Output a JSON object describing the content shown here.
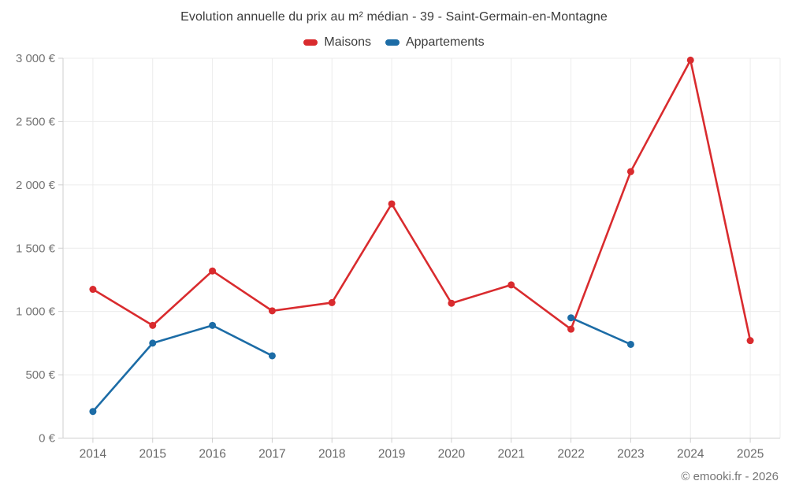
{
  "chart": {
    "title": "Evolution annuelle du prix au m² médian - 39 - Saint-Germain-en-Montagne",
    "footer": "© emooki.fr - 2026"
  },
  "chart_data": {
    "type": "line",
    "title": "Evolution annuelle du prix au m² médian - 39 - Saint-Germain-en-Montagne",
    "categories": [
      "2014",
      "2015",
      "2016",
      "2017",
      "2018",
      "2019",
      "2020",
      "2021",
      "2022",
      "2023",
      "2024",
      "2025"
    ],
    "series": [
      {
        "name": "Maisons",
        "color": "#d92b2e",
        "values": [
          1175,
          890,
          1320,
          1005,
          1070,
          1850,
          1065,
          1210,
          860,
          2105,
          2985,
          770
        ]
      },
      {
        "name": "Appartements",
        "color": "#1c6ca6",
        "values": [
          210,
          750,
          890,
          650,
          null,
          null,
          null,
          null,
          950,
          740,
          null,
          null
        ]
      }
    ],
    "ylim": [
      0,
      3000
    ],
    "y_ticks": [
      {
        "value": 0,
        "label": "0 €"
      },
      {
        "value": 500,
        "label": "500 €"
      },
      {
        "value": 1000,
        "label": "1 000 €"
      },
      {
        "value": 1500,
        "label": "1 500 €"
      },
      {
        "value": 2000,
        "label": "2 000 €"
      },
      {
        "value": 2500,
        "label": "2 500 €"
      },
      {
        "value": 3000,
        "label": "3 000 €"
      }
    ],
    "grid": true,
    "legend_position": "top",
    "xlabel": "",
    "ylabel": ""
  },
  "style": {
    "grid_color": "#ececec",
    "axis_color": "#cfcfcf",
    "tick_color": "#cfcfcf"
  }
}
